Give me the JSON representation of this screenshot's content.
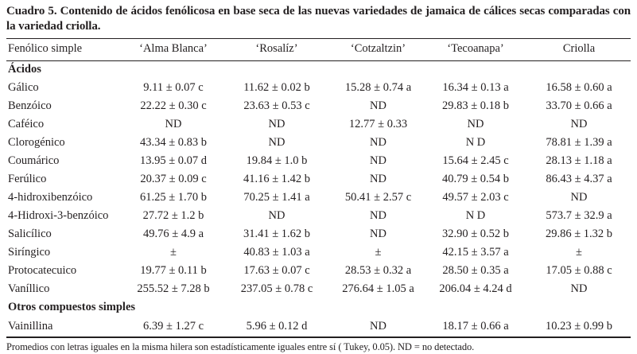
{
  "title": "Cuadro 5. Contenido de ácidos fenólicosa en base seca de las nuevas variedades de jamaica de cálices secas comparadas con la variedad criolla.",
  "table": {
    "columns": [
      "Fenólico simple",
      "‘Alma Blanca’",
      "‘Rosalíz’",
      "‘Cotzaltzin’",
      "‘Tecoanapa’",
      "Criolla"
    ],
    "rows": [
      {
        "type": "section",
        "label": "Ácidos"
      },
      {
        "type": "data",
        "label": "Gálico",
        "values": [
          "9.11 ± 0.07 c",
          "11.62 ± 0.02 b",
          "15.28 ± 0.74 a",
          "16.34 ± 0.13 a",
          "16.58 ± 0.60 a"
        ]
      },
      {
        "type": "data",
        "label": "Benzóico",
        "values": [
          "22.22 ± 0.30 c",
          "23.63 ± 0.53 c",
          "ND",
          "29.83 ± 0.18 b",
          "33.70 ± 0.66 a"
        ]
      },
      {
        "type": "data",
        "label": "Caféico",
        "values": [
          "ND",
          "ND",
          "12.77 ± 0.33",
          "ND",
          "ND"
        ]
      },
      {
        "type": "data",
        "label": "Clorogénico",
        "values": [
          "43.34 ± 0.83 b",
          "ND",
          "ND",
          "N D",
          "78.81 ± 1.39 a"
        ]
      },
      {
        "type": "data",
        "label": "Coumárico",
        "values": [
          "13.95 ± 0.07 d",
          "19.84 ± 1.0 b",
          "ND",
          "15.64 ± 2.45 c",
          "28.13 ± 1.18 a"
        ]
      },
      {
        "type": "data",
        "label": "Ferúlico",
        "values": [
          "20.37 ± 0.09 c",
          "41.16 ± 1.42 b",
          "ND",
          "40.79 ± 0.54 b",
          "86.43 ± 4.37 a"
        ]
      },
      {
        "type": "data",
        "label": "4-hidroxibenzóico",
        "values": [
          "61.25 ± 1.70 b",
          "70.25 ± 1.41 a",
          "50.41 ± 2.57 c",
          "49.57 ± 2.03 c",
          "ND"
        ]
      },
      {
        "type": "data",
        "label": "4-Hidroxi-3-benzóico",
        "values": [
          "27.72 ± 1.2 b",
          "ND",
          "ND",
          "N D",
          "573.7 ± 32.9 a"
        ]
      },
      {
        "type": "data",
        "label": "Salicílico",
        "values": [
          "49.76 ± 4.9 a",
          "31.41 ± 1.62 b",
          "ND",
          "32.90 ± 0.52 b",
          "29.86 ± 1.32 b"
        ]
      },
      {
        "type": "data",
        "label": "Siríngico",
        "values": [
          "±",
          "40.83 ± 1.03 a",
          "±",
          "42.15 ± 3.57 a",
          "±"
        ]
      },
      {
        "type": "data",
        "label": "Protocatecuico",
        "values": [
          "19.77 ± 0.11 b",
          "17.63 ± 0.07 c",
          "28.53 ± 0.32 a",
          "28.50 ± 0.35 a",
          "17.05 ± 0.88 c"
        ]
      },
      {
        "type": "data",
        "label": "Vaníllico",
        "values": [
          "255.52 ± 7.28 b",
          "237.05 ± 0.78 c",
          "276.64 ± 1.05 a",
          "206.04 ± 4.24 d",
          "ND"
        ]
      },
      {
        "type": "section",
        "label": "Otros compuestos simples"
      },
      {
        "type": "data",
        "label": "Vainillina",
        "values": [
          "6.39 ± 1.27 c",
          "5.96 ± 0.12 d",
          "ND",
          "18.17 ± 0.66 a",
          "10.23 ± 0.99 b"
        ]
      }
    ]
  },
  "footnote": "Promedios con letras iguales en la misma hilera son estadísticamente iguales entre sí ( Tukey, 0.05). ND = no detectado."
}
